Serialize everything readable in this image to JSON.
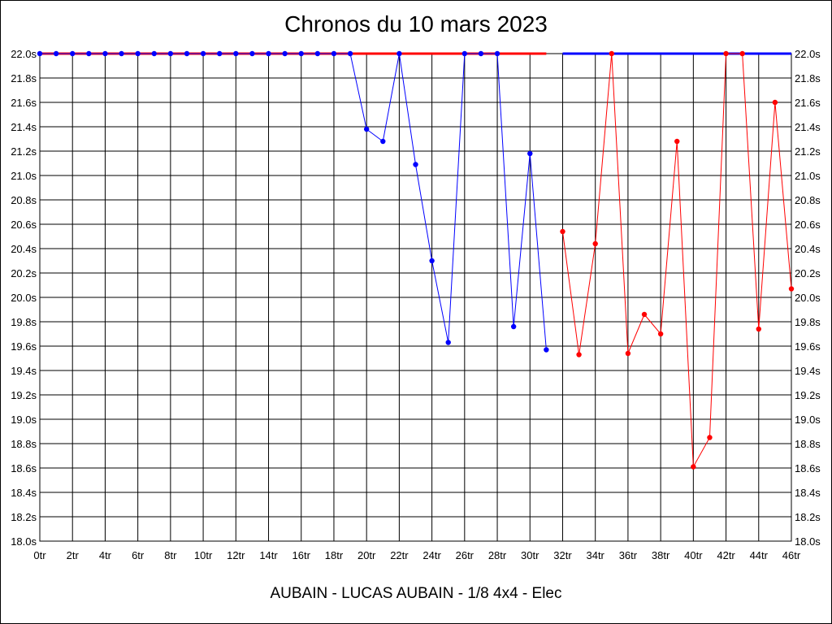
{
  "chart_data": {
    "type": "line",
    "title": "Chronos du 10 mars 2023",
    "subtitle": "AUBAIN - LUCAS AUBAIN - 1/8 4x4 - Elec",
    "xlim": [
      0,
      46
    ],
    "ylim": [
      18.0,
      22.0
    ],
    "x_ticks": [
      0,
      2,
      4,
      6,
      8,
      10,
      12,
      14,
      16,
      18,
      20,
      22,
      24,
      26,
      28,
      30,
      32,
      34,
      36,
      38,
      40,
      42,
      44,
      46
    ],
    "x_tick_labels": [
      "0tr",
      "2tr",
      "4tr",
      "6tr",
      "8tr",
      "10tr",
      "12tr",
      "14tr",
      "16tr",
      "18tr",
      "20tr",
      "22tr",
      "24tr",
      "26tr",
      "28tr",
      "30tr",
      "32tr",
      "34tr",
      "36tr",
      "38tr",
      "40tr",
      "42tr",
      "44tr",
      "46tr"
    ],
    "y_ticks": [
      18.0,
      18.2,
      18.4,
      18.6,
      18.8,
      19.0,
      19.2,
      19.4,
      19.6,
      19.8,
      20.0,
      20.2,
      20.4,
      20.6,
      20.8,
      21.0,
      21.2,
      21.4,
      21.6,
      21.8,
      22.0
    ],
    "y_tick_labels": [
      "18.0s",
      "18.2s",
      "18.4s",
      "18.6s",
      "18.8s",
      "19.0s",
      "19.2s",
      "19.4s",
      "19.6s",
      "19.8s",
      "20.0s",
      "20.2s",
      "20.4s",
      "20.6s",
      "20.8s",
      "21.0s",
      "21.2s",
      "21.4s",
      "21.6s",
      "21.8s",
      "22.0s"
    ],
    "grid": true,
    "series": [
      {
        "color": "#0000ff",
        "x": [
          0,
          1,
          2,
          3,
          4,
          5,
          6,
          7,
          8,
          9,
          10,
          11,
          12,
          13,
          14,
          15,
          16,
          17,
          18,
          19,
          20,
          21,
          22,
          23,
          24,
          25,
          26,
          27,
          28,
          29,
          30,
          31
        ],
        "y": [
          22.0,
          22.0,
          22.0,
          22.0,
          22.0,
          22.0,
          22.0,
          22.0,
          22.0,
          22.0,
          22.0,
          22.0,
          22.0,
          22.0,
          22.0,
          22.0,
          22.0,
          22.0,
          22.0,
          22.0,
          21.38,
          21.28,
          22.0,
          21.09,
          20.3,
          19.63,
          22.0,
          22.0,
          22.0,
          19.76,
          21.18,
          19.57
        ]
      },
      {
        "color": "#ff0000",
        "x": [
          32,
          33,
          34,
          35,
          36,
          37,
          38,
          39,
          40,
          41,
          42,
          43,
          44,
          45,
          46
        ],
        "y": [
          20.54,
          19.53,
          20.44,
          22.0,
          19.54,
          19.86,
          19.7,
          21.28,
          18.61,
          18.85,
          22.0,
          22.0,
          19.74,
          21.6,
          20.07
        ]
      }
    ],
    "best_lines": [
      {
        "color": "#ff0000",
        "x": [
          0,
          31
        ],
        "y": 22.0
      },
      {
        "color": "#0000ff",
        "x": [
          32,
          46
        ],
        "y": 22.0
      }
    ]
  }
}
